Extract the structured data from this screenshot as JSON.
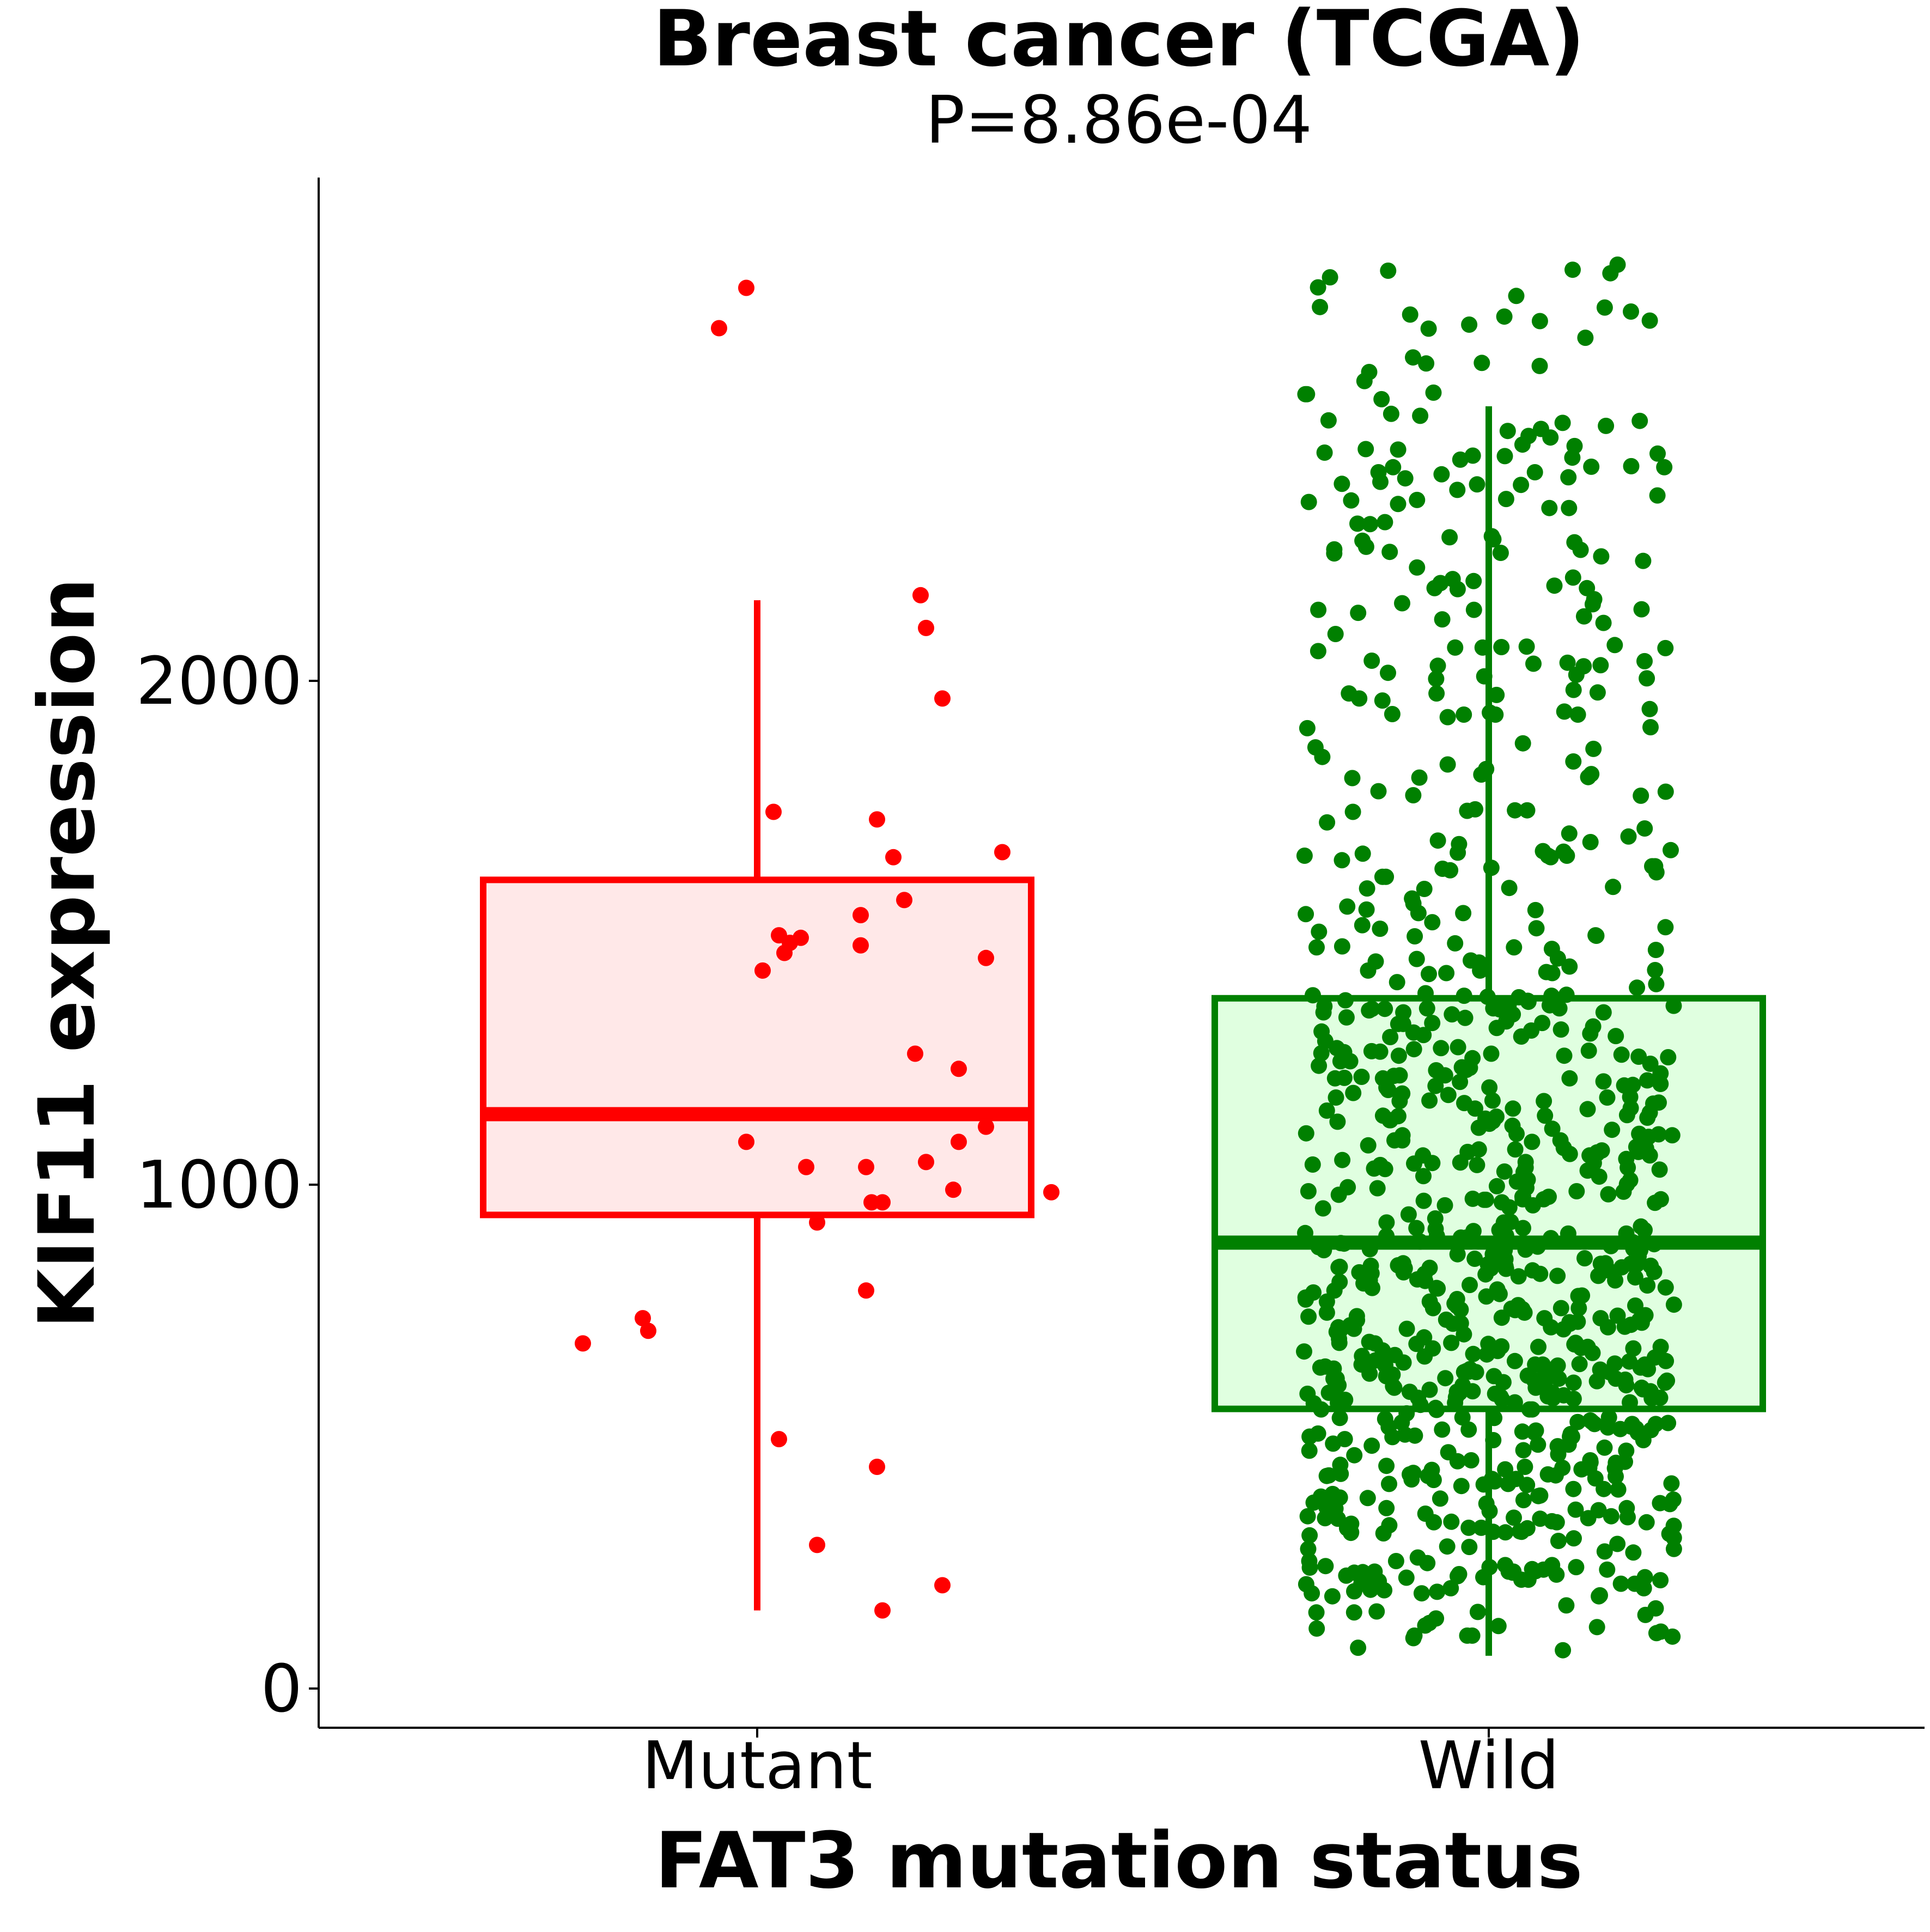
{
  "chart_data": {
    "type": "boxplot",
    "title": "Breast cancer (TCGA)",
    "subtitle": "P=8.86e-04",
    "xlabel": "FAT3 mutation status",
    "ylabel": "KIF11 expression",
    "ylim": [
      -80,
      3000
    ],
    "yticks": [
      0,
      1000,
      2000
    ],
    "ytick_labels": [
      "0",
      "1000",
      "2000"
    ],
    "categories": [
      "Mutant",
      "Wild"
    ],
    "grid": false,
    "legend": "none",
    "groups": [
      {
        "category": "Mutant",
        "color": "#ff0000",
        "fill": "#ffe8e8",
        "q1": 940,
        "median": 1140,
        "q3": 1605,
        "whisker_low": 155,
        "whisker_high": 2160,
        "points": [
          [
            -0.02,
            2780
          ],
          [
            -0.07,
            2700
          ],
          [
            0.19,
            1535
          ],
          [
            0.19,
            1475
          ],
          [
            0.27,
            1565
          ],
          [
            0.22,
            1725
          ],
          [
            0.31,
            2105
          ],
          [
            0.29,
            1260
          ],
          [
            0.37,
            1085
          ],
          [
            0.42,
            1450
          ],
          [
            0.31,
            1045
          ],
          [
            0.2,
            1035
          ],
          [
            0.21,
            965
          ],
          [
            0.23,
            965
          ],
          [
            0.34,
            1965
          ],
          [
            0.37,
            1230
          ],
          [
            0.42,
            1115
          ],
          [
            0.36,
            990
          ],
          [
            0.54,
            985
          ],
          [
            0.03,
            1740
          ],
          [
            0.04,
            1495
          ],
          [
            0.06,
            1480
          ],
          [
            0.01,
            1425
          ],
          [
            0.08,
            1490
          ],
          [
            0.05,
            1460
          ],
          [
            0.09,
            1035
          ],
          [
            -0.02,
            1085
          ],
          [
            0.3,
            2170
          ],
          [
            0.25,
            1650
          ],
          [
            0.45,
            1660
          ],
          [
            -0.2,
            710
          ],
          [
            -0.21,
            735
          ],
          [
            -0.32,
            685
          ],
          [
            0.2,
            790
          ],
          [
            0.11,
            925
          ],
          [
            0.04,
            495
          ],
          [
            0.22,
            440
          ],
          [
            0.11,
            285
          ],
          [
            0.23,
            155
          ],
          [
            0.34,
            205
          ]
        ]
      },
      {
        "category": "Wild",
        "color": "#008000",
        "fill": "#e0ffe0",
        "q1": 555,
        "median": 885,
        "q3": 1370,
        "whisker_low": 65,
        "whisker_high": 2545,
        "n_points": 900,
        "points_summary": "approximately 900 jittered observations between 70 and 2830"
      }
    ]
  }
}
